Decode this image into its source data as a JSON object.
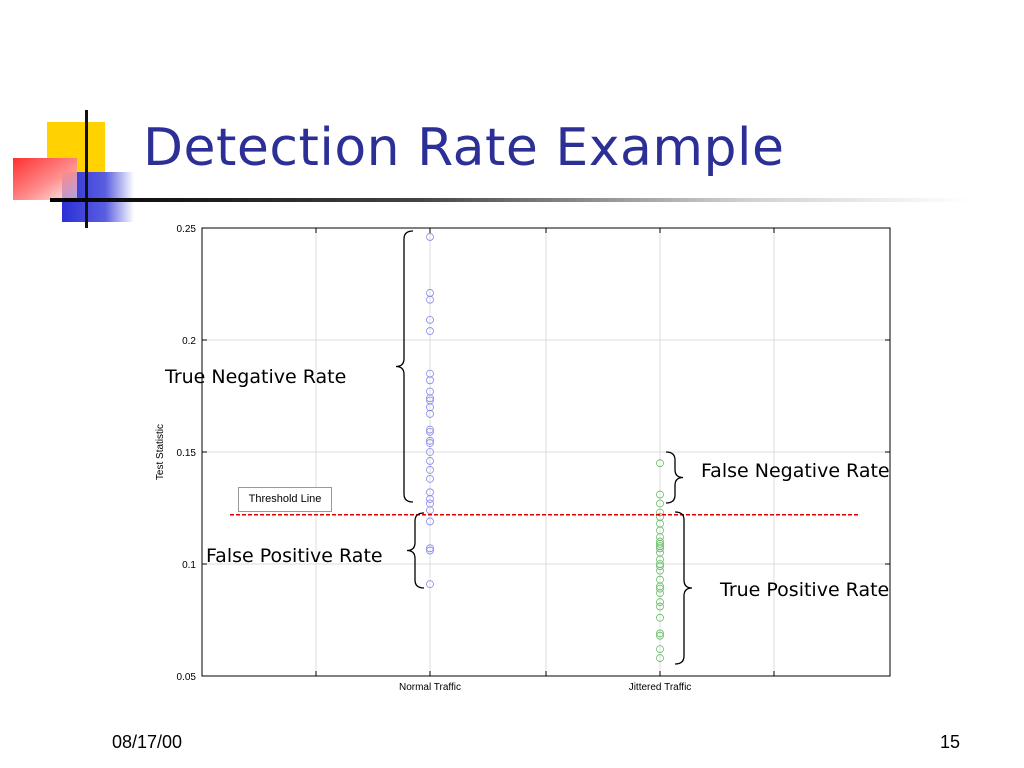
{
  "slide": {
    "title": "Detection Rate Example",
    "date": "08/17/00",
    "page_number": "15"
  },
  "chart_data": {
    "type": "scatter",
    "ylabel": "Test Statistic",
    "xlabel": "",
    "categories": [
      "Normal Traffic",
      "Jittered Traffic"
    ],
    "ylim": [
      0.05,
      0.25
    ],
    "yticks": [
      "0.05",
      "0.1",
      "0.15",
      "0.2",
      "0.25"
    ],
    "grid": true,
    "series": [
      {
        "color": "#8888ee",
        "values": [
          0.246,
          0.221,
          0.218,
          0.209,
          0.204,
          0.185,
          0.182,
          0.177,
          0.174,
          0.173,
          0.17,
          0.167,
          0.16,
          0.159,
          0.155,
          0.154,
          0.15,
          0.146,
          0.142,
          0.138,
          0.132,
          0.129,
          0.127,
          0.124,
          0.119,
          0.107,
          0.106,
          0.091
        ]
      },
      {
        "color": "#66bb66",
        "values": [
          0.145,
          0.131,
          0.127,
          0.123,
          0.121,
          0.118,
          0.115,
          0.112,
          0.11,
          0.109,
          0.108,
          0.107,
          0.105,
          0.102,
          0.1,
          0.099,
          0.097,
          0.093,
          0.09,
          0.089,
          0.087,
          0.083,
          0.081,
          0.076,
          0.069,
          0.068,
          0.062,
          0.058
        ]
      }
    ],
    "threshold": {
      "value": 0.122,
      "label": "Threshold Line",
      "color": "#dd0000"
    },
    "annotations": {
      "true_negative": "True Negative Rate",
      "false_positive": "False Positive Rate",
      "false_negative": "False Negative Rate",
      "true_positive": "True Positive Rate"
    }
  }
}
